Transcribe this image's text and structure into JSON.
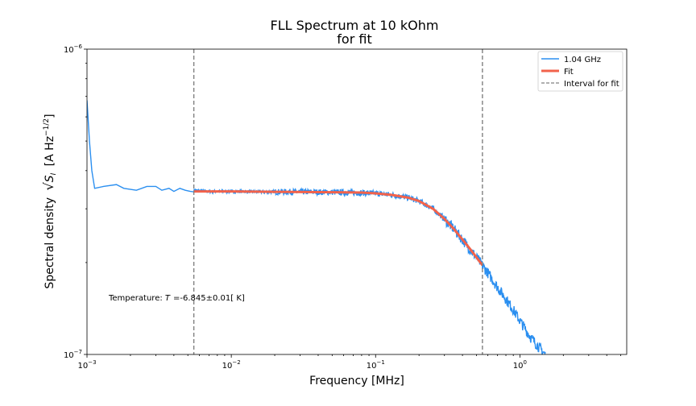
{
  "chart_data": {
    "type": "line",
    "title": [
      "FLL Spectrum at 10 kOhm",
      "for fit"
    ],
    "xlabel": "Frequency [MHz]",
    "ylabel": "Spectral density",
    "ylabel_sqrt": "S",
    "ylabel_sub": "I",
    "ylabel_unit": "[A Hz",
    "ylabel_unit_exp": "−1/2",
    "ylabel_unit_close": "]",
    "x_scale": "log",
    "y_scale": "log",
    "xlim": [
      0.001,
      5.5
    ],
    "ylim": [
      1e-07,
      1e-06
    ],
    "x_ticks": [
      {
        "value": 0.001,
        "base": "10",
        "exp": "−3"
      },
      {
        "value": 0.01,
        "base": "10",
        "exp": "−2"
      },
      {
        "value": 0.1,
        "base": "10",
        "exp": "−1"
      },
      {
        "value": 1,
        "base": "10",
        "exp": "0"
      }
    ],
    "y_ticks": [
      {
        "value": 1e-07,
        "base": "10",
        "exp": "−7"
      },
      {
        "value": 1e-06,
        "base": "10",
        "exp": "−6"
      }
    ],
    "legend_position": "top-right",
    "series": [
      {
        "name": "1.04 GHz",
        "color": "#2b8ff0",
        "style": "noisy-line",
        "x": [
          0.001,
          0.00104,
          0.00108,
          0.00113,
          0.0013,
          0.0016,
          0.0018,
          0.0022,
          0.0026,
          0.003,
          0.0033,
          0.0037,
          0.004,
          0.0044,
          0.0048,
          0.0052,
          0.0055,
          0.0062,
          0.007,
          0.0085,
          0.01,
          0.015,
          0.02,
          0.03,
          0.05,
          0.07,
          0.1,
          0.13,
          0.17,
          0.2,
          0.25,
          0.3,
          0.35,
          0.4,
          0.5,
          0.6,
          0.7,
          0.8,
          0.9,
          1.0,
          1.2,
          1.5
        ],
        "y": [
          6.8e-07,
          5e-07,
          4e-07,
          3.5e-07,
          3.55e-07,
          3.6e-07,
          3.5e-07,
          3.45e-07,
          3.55e-07,
          3.55e-07,
          3.45e-07,
          3.5e-07,
          3.42e-07,
          3.5e-07,
          3.45e-07,
          3.42e-07,
          3.45e-07,
          3.43e-07,
          3.42e-07,
          3.42e-07,
          3.42e-07,
          3.41e-07,
          3.41e-07,
          3.41e-07,
          3.4e-07,
          3.39e-07,
          3.37e-07,
          3.33e-07,
          3.26e-07,
          3.18e-07,
          3e-07,
          2.78e-07,
          2.57e-07,
          2.38e-07,
          2.08e-07,
          1.85e-07,
          1.66e-07,
          1.52e-07,
          1.4e-07,
          1.29e-07,
          1.13e-07,
          1e-07
        ]
      },
      {
        "name": "Fit",
        "color": "#f2624b",
        "style": "thick-line",
        "x": [
          0.0055,
          0.01,
          0.02,
          0.05,
          0.08,
          0.1,
          0.13,
          0.17,
          0.2,
          0.25,
          0.3,
          0.35,
          0.4,
          0.45,
          0.5,
          0.55
        ],
        "y": [
          3.42e-07,
          3.42e-07,
          3.41e-07,
          3.4e-07,
          3.39e-07,
          3.37e-07,
          3.33e-07,
          3.26e-07,
          3.18e-07,
          3e-07,
          2.78e-07,
          2.57e-07,
          2.38e-07,
          2.22e-07,
          2.08e-07,
          1.96e-07
        ]
      }
    ],
    "vlines": {
      "name": "Interval for fit",
      "color": "#808080",
      "style": "dashed",
      "x": [
        0.0055,
        0.55
      ]
    },
    "annotation": {
      "prefix": "Temperature: ",
      "symbol": "T",
      "value": "=-6.845±0.01[ K]"
    }
  }
}
